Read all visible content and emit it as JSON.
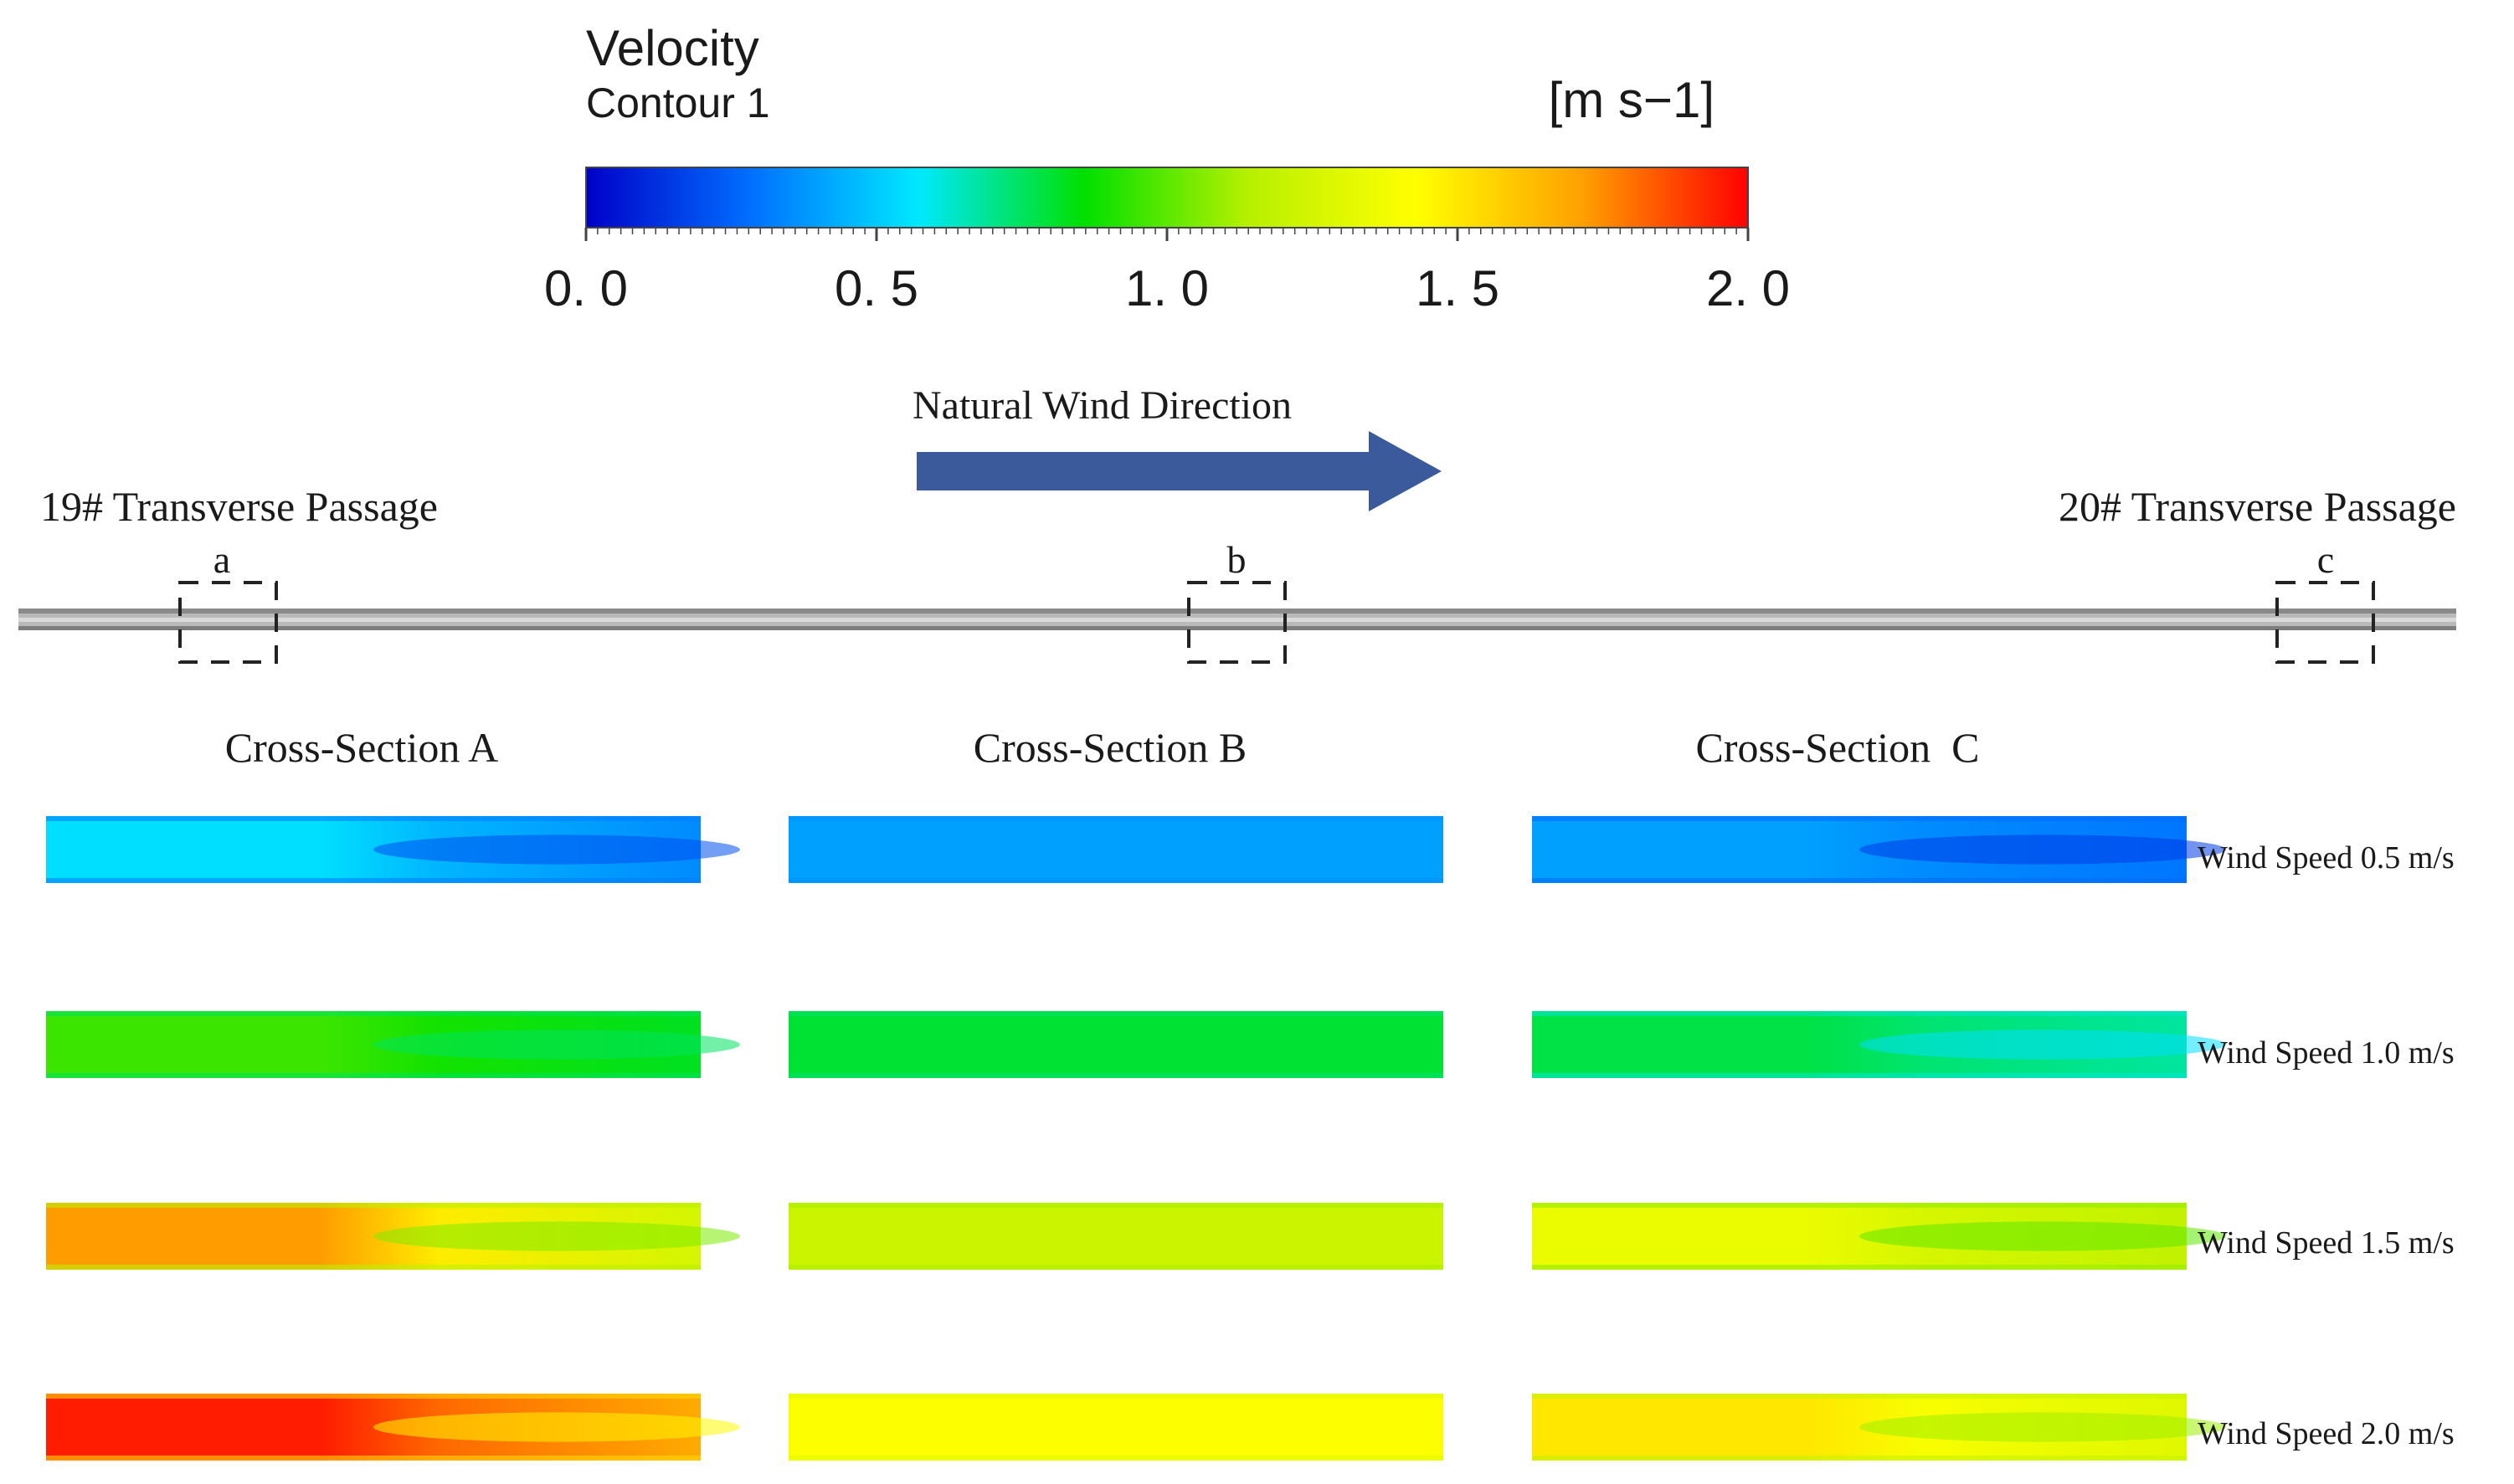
{
  "legend": {
    "title": "Velocity",
    "subtitle": "Contour 1",
    "unit": "[m s−1]",
    "min": 0.0,
    "max": 2.0,
    "tick_labels": [
      "0. 0",
      "0. 5",
      "1. 0",
      "1. 5",
      "2. 0"
    ],
    "tick_values": [
      0.0,
      0.5,
      1.0,
      1.5,
      2.0
    ],
    "colormap": [
      "#0000c8",
      "#0070ff",
      "#00e8ff",
      "#00e000",
      "#b8f000",
      "#ffff00",
      "#ffa000",
      "#ff0000"
    ]
  },
  "wind": {
    "label": "Natural Wind Direction",
    "arrow_color": "#3a5a9c"
  },
  "tunnel": {
    "left_label": "19# Transverse Passage",
    "right_label": "20# Transverse Passage",
    "markers": [
      "a",
      "b",
      "c"
    ]
  },
  "sections": {
    "columns": [
      "Cross-Section A",
      "Cross-Section B",
      "Cross-Section  C"
    ],
    "rows": [
      {
        "label": "Wind Speed 0.5 m/s",
        "cells": [
          {
            "left": 0.55,
            "right": 0.35,
            "core": 0.2
          },
          {
            "left": 0.4,
            "right": 0.4,
            "core": 0.4
          },
          {
            "left": 0.4,
            "right": 0.3,
            "core": 0.15
          }
        ]
      },
      {
        "label": "Wind Speed 1.0 m/s",
        "cells": [
          {
            "left": 0.95,
            "right": 0.82,
            "core": 0.75
          },
          {
            "left": 0.8,
            "right": 0.8,
            "core": 0.8
          },
          {
            "left": 0.78,
            "right": 0.68,
            "core": 0.55
          }
        ]
      },
      {
        "label": "Wind Speed 1.5 m/s",
        "cells": [
          {
            "left": 1.72,
            "right": 1.25,
            "core": 1.05
          },
          {
            "left": 1.22,
            "right": 1.22,
            "core": 1.22
          },
          {
            "left": 1.35,
            "right": 1.18,
            "core": 1.0
          }
        ]
      },
      {
        "label": "Wind Speed 2.0 m/s",
        "cells": [
          {
            "left": 1.95,
            "right": 1.68,
            "core": 1.45
          },
          {
            "left": 1.42,
            "right": 1.42,
            "core": 1.42
          },
          {
            "left": 1.5,
            "right": 1.3,
            "core": 1.1
          }
        ]
      }
    ]
  }
}
